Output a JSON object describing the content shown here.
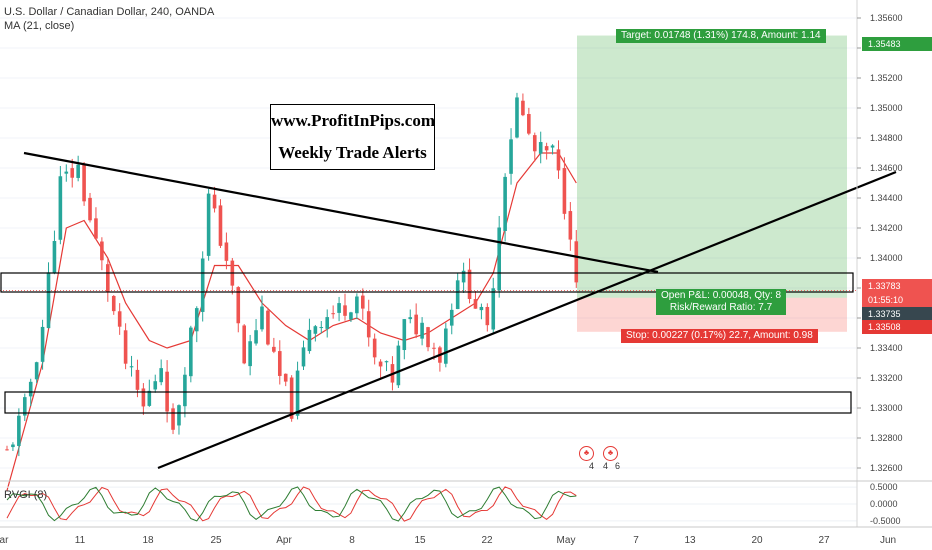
{
  "header": {
    "title": "U.S. Dollar / Canadian Dollar, 240, OANDA",
    "indicator": "MA (21, close)",
    "oscillator": "RVGI (8)"
  },
  "branding": {
    "line1": "www.ProfitInPips.com",
    "line2": "Weekly Trade Alerts"
  },
  "position": {
    "target_label": "Target: 0.01748 (1.31%) 174.8, Amount: 1.14",
    "pnl_label": "Open P&L: 0.00048, Qty: 8",
    "rr_label": "Risk/Reward Ratio: 7.7",
    "stop_label": "Stop: 0.00227 (0.17%) 22.7, Amount: 0.98",
    "entry": 1.33735,
    "target": 1.35483,
    "stop": 1.33508
  },
  "price_axis": {
    "ticks": [
      "1.35600",
      "1.35400",
      "1.35200",
      "1.35000",
      "1.34800",
      "1.34600",
      "1.34400",
      "1.34200",
      "1.34000",
      "1.33800",
      "1.33600",
      "1.33400",
      "1.33200",
      "1.33000",
      "1.32800",
      "1.32600"
    ],
    "target_tag": "1.35483",
    "last_tag": "1.33783",
    "timer_tag": "01:55:10",
    "entry_tag": "1.33735",
    "stop_tag": "1.33508"
  },
  "rvgi_axis": {
    "ticks": [
      "0.5000",
      "0.0000",
      "-0.5000"
    ]
  },
  "time_axis": {
    "labels": [
      "ar",
      "11",
      "18",
      "25",
      "Apr",
      "8",
      "15",
      "22",
      "May",
      "7",
      "13",
      "20",
      "27",
      "Jun"
    ]
  },
  "events": {
    "counts": [
      "4",
      "4",
      "6"
    ]
  },
  "colors": {
    "up": "#26a69a",
    "down": "#ef5350",
    "ma": "#e53935",
    "target_zone": "#4caf50",
    "stop_zone": "#f44336",
    "rvgi_main": "#2e7d32",
    "rvgi_signal": "#e53935",
    "trendline": "#000000"
  },
  "chart_data": {
    "type": "candlestick",
    "title": "U.S. Dollar / Canadian Dollar, 240, OANDA",
    "ylim": [
      1.3252,
      1.3572
    ],
    "x_labels": [
      "ar",
      "11",
      "18",
      "25",
      "Apr",
      "8",
      "15",
      "22",
      "May",
      "7",
      "13",
      "20",
      "27",
      "Jun"
    ],
    "close_path": [
      [
        0,
        1.327
      ],
      [
        3,
        1.33
      ],
      [
        6,
        1.3355
      ],
      [
        9,
        1.345
      ],
      [
        12,
        1.346
      ],
      [
        14,
        1.3425
      ],
      [
        17,
        1.338
      ],
      [
        20,
        1.333
      ],
      [
        23,
        1.33
      ],
      [
        26,
        1.333
      ],
      [
        28,
        1.328
      ],
      [
        30,
        1.333
      ],
      [
        32,
        1.337
      ],
      [
        34,
        1.344
      ],
      [
        37,
        1.34
      ],
      [
        40,
        1.333
      ],
      [
        43,
        1.3365
      ],
      [
        45,
        1.333
      ],
      [
        48,
        1.33
      ],
      [
        51,
        1.3355
      ],
      [
        53,
        1.336
      ],
      [
        56,
        1.3365
      ],
      [
        59,
        1.3375
      ],
      [
        62,
        1.333
      ],
      [
        65,
        1.332
      ],
      [
        67,
        1.3355
      ],
      [
        70,
        1.3355
      ],
      [
        73,
        1.3335
      ],
      [
        76,
        1.339
      ],
      [
        78,
        1.338
      ],
      [
        81,
        1.335
      ],
      [
        84,
        1.346
      ],
      [
        86,
        1.3505
      ],
      [
        89,
        1.347
      ],
      [
        92,
        1.347
      ],
      [
        95,
        1.342
      ],
      [
        96,
        1.3378
      ]
    ],
    "ma21_path": [
      [
        0,
        1.3245
      ],
      [
        6,
        1.333
      ],
      [
        10,
        1.342
      ],
      [
        13,
        1.3425
      ],
      [
        17,
        1.34
      ],
      [
        20,
        1.337
      ],
      [
        24,
        1.3345
      ],
      [
        27,
        1.334
      ],
      [
        31,
        1.3345
      ],
      [
        35,
        1.3395
      ],
      [
        39,
        1.3395
      ],
      [
        43,
        1.337
      ],
      [
        47,
        1.3355
      ],
      [
        51,
        1.3345
      ],
      [
        55,
        1.3355
      ],
      [
        59,
        1.336
      ],
      [
        63,
        1.335
      ],
      [
        67,
        1.3345
      ],
      [
        71,
        1.335
      ],
      [
        75,
        1.336
      ],
      [
        79,
        1.337
      ],
      [
        82,
        1.339
      ],
      [
        86,
        1.345
      ],
      [
        90,
        1.347
      ],
      [
        93,
        1.347
      ],
      [
        96,
        1.345
      ]
    ]
  }
}
